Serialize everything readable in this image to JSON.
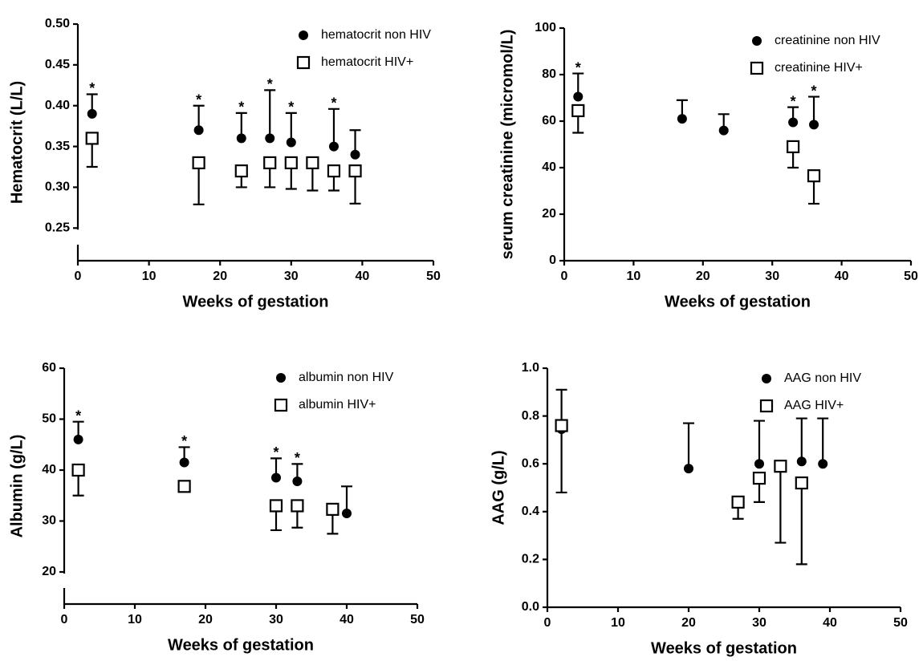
{
  "chart_data": [
    {
      "type": "scatter",
      "xlabel": "Weeks of gestation",
      "ylabel": "Hematocrit (L/L)",
      "xlim": [
        0,
        50
      ],
      "xticks": [
        0,
        10,
        20,
        30,
        40,
        50
      ],
      "ylim": [
        0.21,
        0.5
      ],
      "axis_break": true,
      "yticks": [
        {
          "value": 0.25,
          "label": "0.25"
        },
        {
          "value": 0.3,
          "label": "0.30"
        },
        {
          "value": 0.35,
          "label": "0.35"
        },
        {
          "value": 0.4,
          "label": "0.40"
        },
        {
          "value": 0.45,
          "label": "0.45"
        },
        {
          "value": 0.5,
          "label": "0.50"
        }
      ],
      "series": [
        {
          "name": "hematocrit non HIV",
          "marker": "circle",
          "color": "#000000",
          "error_direction": "up",
          "x": [
            2,
            17,
            23,
            27,
            30,
            36,
            39
          ],
          "values": [
            0.39,
            0.37,
            0.36,
            0.36,
            0.355,
            0.35,
            0.34
          ],
          "errors": [
            0.024,
            0.03,
            0.031,
            0.059,
            0.036,
            0.046,
            0.03
          ],
          "annotations": [
            "*",
            "*",
            "*",
            "*",
            "*",
            "*",
            null
          ]
        },
        {
          "name": "hematocrit HIV+",
          "marker": "square",
          "color": "#000000",
          "error_direction": "down",
          "x": [
            2,
            17,
            23,
            27,
            30,
            33,
            36,
            39
          ],
          "values": [
            0.36,
            0.33,
            0.32,
            0.33,
            0.33,
            0.33,
            0.32,
            0.32
          ],
          "errors": [
            0.035,
            0.051,
            0.02,
            0.03,
            0.032,
            0.034,
            0.024,
            0.04
          ]
        }
      ]
    },
    {
      "type": "scatter",
      "xlabel": "Weeks of gestation",
      "ylabel": "serum creatinine (micromol/L)",
      "xlim": [
        0,
        50
      ],
      "xticks": [
        0,
        10,
        20,
        30,
        40,
        50
      ],
      "ylim": [
        0,
        100
      ],
      "yticks": [
        0,
        20,
        40,
        60,
        80,
        100
      ],
      "series": [
        {
          "name": "creatinine non HIV",
          "marker": "circle",
          "color": "#000000",
          "error_direction": "up",
          "x": [
            2,
            17,
            23,
            33,
            36
          ],
          "values": [
            70.5,
            61,
            56,
            59.5,
            58.5
          ],
          "errors": [
            10,
            8,
            7,
            6.5,
            12
          ],
          "annotations": [
            "*",
            null,
            null,
            "*",
            "*"
          ]
        },
        {
          "name": "creatinine HIV+",
          "marker": "square",
          "color": "#000000",
          "error_direction": "down",
          "x": [
            2,
            33,
            36
          ],
          "values": [
            64.5,
            49,
            36.5
          ],
          "errors": [
            9.5,
            9,
            12
          ]
        }
      ]
    },
    {
      "type": "scatter",
      "xlabel": "Weeks of gestation",
      "ylabel": "Albumin (g/L)",
      "xlim": [
        0,
        50
      ],
      "xticks": [
        0,
        10,
        20,
        30,
        40,
        50
      ],
      "ylim": [
        13.7,
        60
      ],
      "axis_break": true,
      "yticks": [
        20,
        30,
        40,
        50,
        60
      ],
      "series": [
        {
          "name": "albumin non HIV",
          "marker": "circle",
          "color": "#000000",
          "error_direction": "up",
          "x": [
            2,
            17,
            30,
            33,
            40
          ],
          "values": [
            46,
            41.5,
            38.5,
            37.8,
            31.5
          ],
          "errors": [
            3.5,
            3,
            3.8,
            3.4,
            5.3
          ],
          "annotations": [
            "*",
            "*",
            "*",
            "*",
            null
          ]
        },
        {
          "name": "albumin HIV+",
          "marker": "square",
          "color": "#000000",
          "error_direction": "down",
          "x": [
            2,
            17,
            30,
            33,
            38
          ],
          "values": [
            40,
            36.8,
            33,
            33,
            32.3
          ],
          "errors": [
            5,
            null,
            4.8,
            4.3,
            4.8
          ]
        }
      ]
    },
    {
      "type": "scatter",
      "xlabel": "Weeks of gestation",
      "ylabel": "AAG (g/L)",
      "xlim": [
        0,
        50
      ],
      "xticks": [
        0,
        10,
        20,
        30,
        40,
        50
      ],
      "ylim": [
        0,
        1
      ],
      "yticks": [
        {
          "value": 0,
          "label": "0.0"
        },
        {
          "value": 0.2,
          "label": "0.2"
        },
        {
          "value": 0.4,
          "label": "0.4"
        },
        {
          "value": 0.6,
          "label": "0.6"
        },
        {
          "value": 0.8,
          "label": "0.8"
        },
        {
          "value": 1,
          "label": "1.0"
        }
      ],
      "series": [
        {
          "name": "AAG non HIV",
          "marker": "circle",
          "color": "#000000",
          "error_direction": "up",
          "x": [
            2,
            20,
            30,
            36,
            39
          ],
          "values": [
            0.745,
            0.58,
            0.6,
            0.61,
            0.6
          ],
          "errors": [
            0.165,
            0.19,
            0.18,
            0.18,
            0.19
          ]
        },
        {
          "name": "AAG HIV+",
          "marker": "square",
          "color": "#000000",
          "error_direction": "down",
          "x": [
            2,
            27,
            30,
            33,
            36
          ],
          "values": [
            0.76,
            0.44,
            0.54,
            0.59,
            0.52
          ],
          "errors": [
            0.28,
            0.07,
            0.1,
            0.32,
            0.34
          ]
        }
      ]
    }
  ]
}
